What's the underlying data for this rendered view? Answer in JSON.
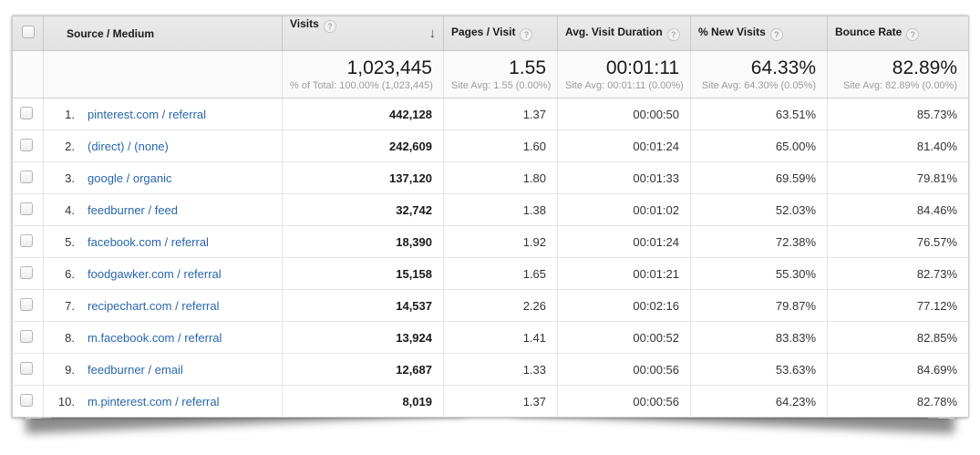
{
  "colors": {
    "link_blue": "#2a66ad",
    "header_bg": "#e5e5e5",
    "row_border": "#e4e4e4"
  },
  "header": {
    "source_medium": "Source / Medium",
    "visits": "Visits",
    "pages_visit": "Pages / Visit",
    "avg_duration": "Avg. Visit Duration",
    "new_visits": "% New Visits",
    "bounce_rate": "Bounce Rate",
    "help_glyph": "?",
    "sort_arrow": "↓"
  },
  "summary": {
    "visits": "1,023,445",
    "visits_sub": "% of Total: 100.00% (1,023,445)",
    "pages": "1.55",
    "pages_sub": "Site Avg: 1.55 (0.00%)",
    "duration": "00:01:11",
    "duration_sub": "Site Avg: 00:01:11 (0.00%)",
    "new_visits": "64.33%",
    "new_visits_sub": "Site Avg: 64.30% (0.05%)",
    "bounce": "82.89%",
    "bounce_sub": "Site Avg: 82.89% (0.00%)"
  },
  "rows": [
    {
      "num": "1.",
      "source": "pinterest.com / referral",
      "visits": "442,128",
      "pages": "1.37",
      "duration": "00:00:50",
      "new_visits": "63.51%",
      "bounce": "85.73%"
    },
    {
      "num": "2.",
      "source": "(direct) / (none)",
      "visits": "242,609",
      "pages": "1.60",
      "duration": "00:01:24",
      "new_visits": "65.00%",
      "bounce": "81.40%"
    },
    {
      "num": "3.",
      "source": "google / organic",
      "visits": "137,120",
      "pages": "1.80",
      "duration": "00:01:33",
      "new_visits": "69.59%",
      "bounce": "79.81%"
    },
    {
      "num": "4.",
      "source": "feedburner / feed",
      "visits": "32,742",
      "pages": "1.38",
      "duration": "00:01:02",
      "new_visits": "52.03%",
      "bounce": "84.46%"
    },
    {
      "num": "5.",
      "source": "facebook.com / referral",
      "visits": "18,390",
      "pages": "1.92",
      "duration": "00:01:24",
      "new_visits": "72.38%",
      "bounce": "76.57%"
    },
    {
      "num": "6.",
      "source": "foodgawker.com / referral",
      "visits": "15,158",
      "pages": "1.65",
      "duration": "00:01:21",
      "new_visits": "55.30%",
      "bounce": "82.73%"
    },
    {
      "num": "7.",
      "source": "recipechart.com / referral",
      "visits": "14,537",
      "pages": "2.26",
      "duration": "00:02:16",
      "new_visits": "79.87%",
      "bounce": "77.12%"
    },
    {
      "num": "8.",
      "source": "m.facebook.com / referral",
      "visits": "13,924",
      "pages": "1.41",
      "duration": "00:00:52",
      "new_visits": "83.83%",
      "bounce": "82.85%"
    },
    {
      "num": "9.",
      "source": "feedburner / email",
      "visits": "12,687",
      "pages": "1.33",
      "duration": "00:00:56",
      "new_visits": "53.63%",
      "bounce": "84.69%"
    },
    {
      "num": "10.",
      "source": "m.pinterest.com / referral",
      "visits": "8,019",
      "pages": "1.37",
      "duration": "00:00:56",
      "new_visits": "64.23%",
      "bounce": "82.78%"
    }
  ]
}
